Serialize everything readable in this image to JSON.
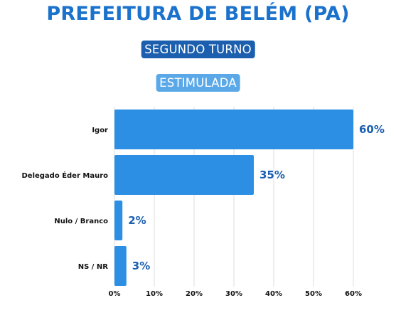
{
  "header": {
    "title": "PREFEITURA DE BELÉM (PA)",
    "turno": "SEGUNDO TURNO",
    "tipo": "ESTIMULADA"
  },
  "colors": {
    "title": "#1a72cc",
    "turno_pill": "#1b5fae",
    "tipo_pill": "#5aa8e8",
    "bar": "#2d8fe4",
    "value_label": "#1a5fb0",
    "grid": "#dcdcdc"
  },
  "chart_data": {
    "type": "bar",
    "orientation": "horizontal",
    "categories": [
      "Igor",
      "Delegado Éder Mauro",
      "Nulo / Branco",
      "NS / NR"
    ],
    "values": [
      60,
      35,
      2,
      3
    ],
    "value_labels": [
      "60%",
      "35%",
      "2%",
      "3%"
    ],
    "xlim": [
      0,
      60
    ],
    "x_ticks": [
      0,
      10,
      20,
      30,
      40,
      50,
      60
    ],
    "x_tick_labels": [
      "0%",
      "10%",
      "20%",
      "30%",
      "40%",
      "50%",
      "60%"
    ],
    "grid": true,
    "title": "",
    "xlabel": "",
    "ylabel": ""
  }
}
